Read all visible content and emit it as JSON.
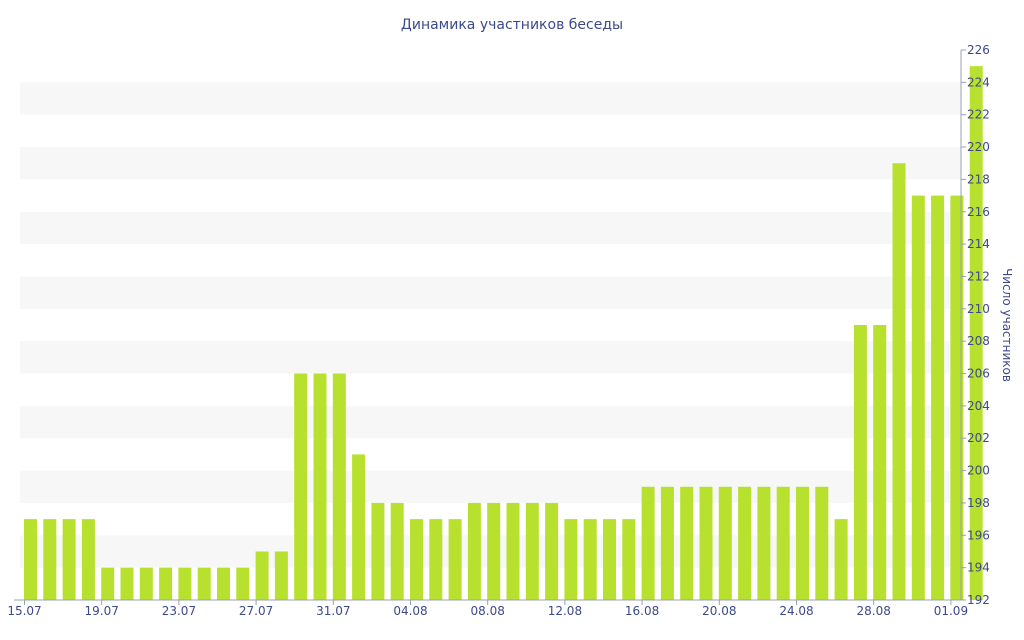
{
  "chart_data": {
    "type": "bar",
    "title": "Динамика участников беседы",
    "ylabel": "Число участников",
    "xlabel": "",
    "ylim": [
      192,
      226
    ],
    "y_ticks": [
      192,
      194,
      196,
      198,
      200,
      202,
      204,
      206,
      208,
      210,
      212,
      214,
      216,
      218,
      220,
      222,
      224,
      226
    ],
    "x_tick_labels": [
      "15.07",
      "19.07",
      "23.07",
      "27.07",
      "31.07",
      "04.08",
      "08.08",
      "12.08",
      "16.08",
      "20.08",
      "24.08",
      "28.08",
      "01.09"
    ],
    "x_tick_every": 4,
    "axis_position": "right",
    "grid": "alternating horizontal bands",
    "bar_color": "#b8e02e",
    "band_color": "#f7f7f7",
    "text_color": "#3d4a8a",
    "values": [
      197,
      197,
      197,
      197,
      194,
      194,
      194,
      194,
      194,
      194,
      194,
      194,
      195,
      195,
      206,
      206,
      206,
      201,
      198,
      198,
      197,
      197,
      197,
      198,
      198,
      198,
      198,
      198,
      197,
      197,
      197,
      197,
      199,
      199,
      199,
      199,
      199,
      199,
      199,
      199,
      199,
      199,
      197,
      209,
      209,
      219,
      217,
      217,
      217,
      225
    ]
  }
}
